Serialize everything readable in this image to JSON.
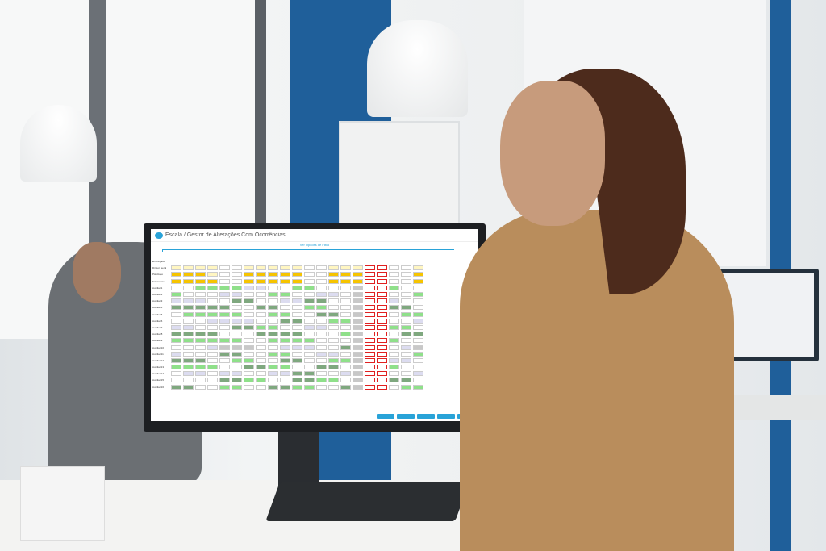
{
  "app": {
    "title": "Escala / Gestor de Alterações Com Ocorrências",
    "filter_link": "Ver Opções de Filtro",
    "column_header_employee": "Empregado",
    "accent_color": "#29a3d8",
    "rows": [
      {
        "label": "Diretor Geral",
        "cells": "FFFFLLFFFFFLLFFFRRLLF"
      },
      {
        "label": "Psicólogo",
        "cells": "YYYFLLYYYYYLLYYYRRLLY"
      },
      {
        "label": "Enfermeiro",
        "cells": "YYYYLLYYYYYLLYYYRRLLY"
      },
      {
        "label": "Auxiliar 1",
        "cells": "LLGGGGPPLLGGLLLSRRGLL"
      },
      {
        "label": "Auxiliar 2",
        "cells": "GLLLPPLLGGLLPPLSRRLLG"
      },
      {
        "label": "Auxiliar 3",
        "cells": "PPPLLDDLLPPDDLLSRRPLL"
      },
      {
        "label": "Auxiliar 4",
        "cells": "DDDDDLLDDLLGGLLSRRDDL"
      },
      {
        "label": "Auxiliar 5",
        "cells": "LGGGGGLLGGLLDDLSRRLGG"
      },
      {
        "label": "Auxiliar 6",
        "cells": "LLLPPPPLLDDLLGGSRRLLP"
      },
      {
        "label": "Auxiliar 7",
        "cells": "PPLLLDDGGLLPPLLSRRGGL"
      },
      {
        "label": "Auxiliar 8",
        "cells": "DDDDLLLDDDDLLLGSRRLDD"
      },
      {
        "label": "Auxiliar 9",
        "cells": "GGGGGGLLGGGGLLLSRRGLL"
      },
      {
        "label": "Auxiliar 10",
        "cells": "LLLPSSSLLPPPLLDSRRLPS"
      },
      {
        "label": "Auxiliar 11",
        "cells": "PLLLDDLLGGLLPPLSRRLLG"
      },
      {
        "label": "Auxiliar 12",
        "cells": "DDDLLGGLLDDLLGGSRRPPL"
      },
      {
        "label": "Auxiliar 13",
        "cells": "GGGGLLDDGGLLDDLSRRGLL"
      },
      {
        "label": "Auxiliar 14",
        "cells": "LPPLPPLLPPDDLLPSRRLLP"
      },
      {
        "label": "Auxiliar 15",
        "cells": "LLLLDDGGLLDDGGLSRRDDL"
      },
      {
        "label": "Auxiliar 16",
        "cells": "DDLLGGLLDDGGLLDSRRLGG"
      }
    ]
  }
}
